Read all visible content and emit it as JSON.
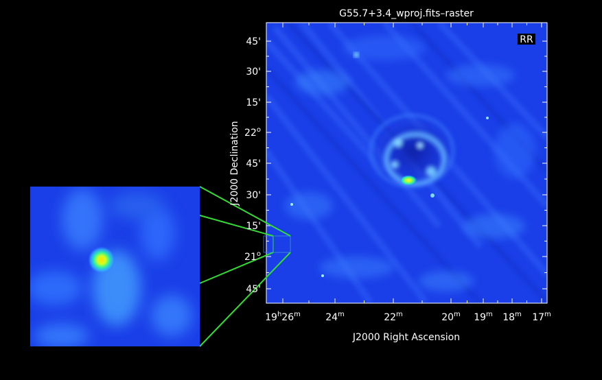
{
  "title": "G55.7+3.4_wproj.fits–raster",
  "polarization_badge": "RR",
  "xlabel": "J2000 Right Ascension",
  "ylabel": "J2000 Declination",
  "ra_ticks": [
    {
      "h": "19",
      "m": "26"
    },
    {
      "m": "24"
    },
    {
      "m": "22"
    },
    {
      "m": "20"
    },
    {
      "m": "19"
    },
    {
      "m": "18"
    },
    {
      "m": "17"
    }
  ],
  "dec_ticks": [
    {
      "text": "45'"
    },
    {
      "text": "30'"
    },
    {
      "text": "15'"
    },
    {
      "deg": "22"
    },
    {
      "text": "45'"
    },
    {
      "text": "30'"
    },
    {
      "text": "15'"
    },
    {
      "deg": "21"
    },
    {
      "text": "45'"
    }
  ],
  "colors": {
    "background": "#000000",
    "map_base": "#1a3fe8",
    "bright_core": "#ffff00",
    "zoom_lines": "#33dd33",
    "axis": "#ffffff"
  }
}
